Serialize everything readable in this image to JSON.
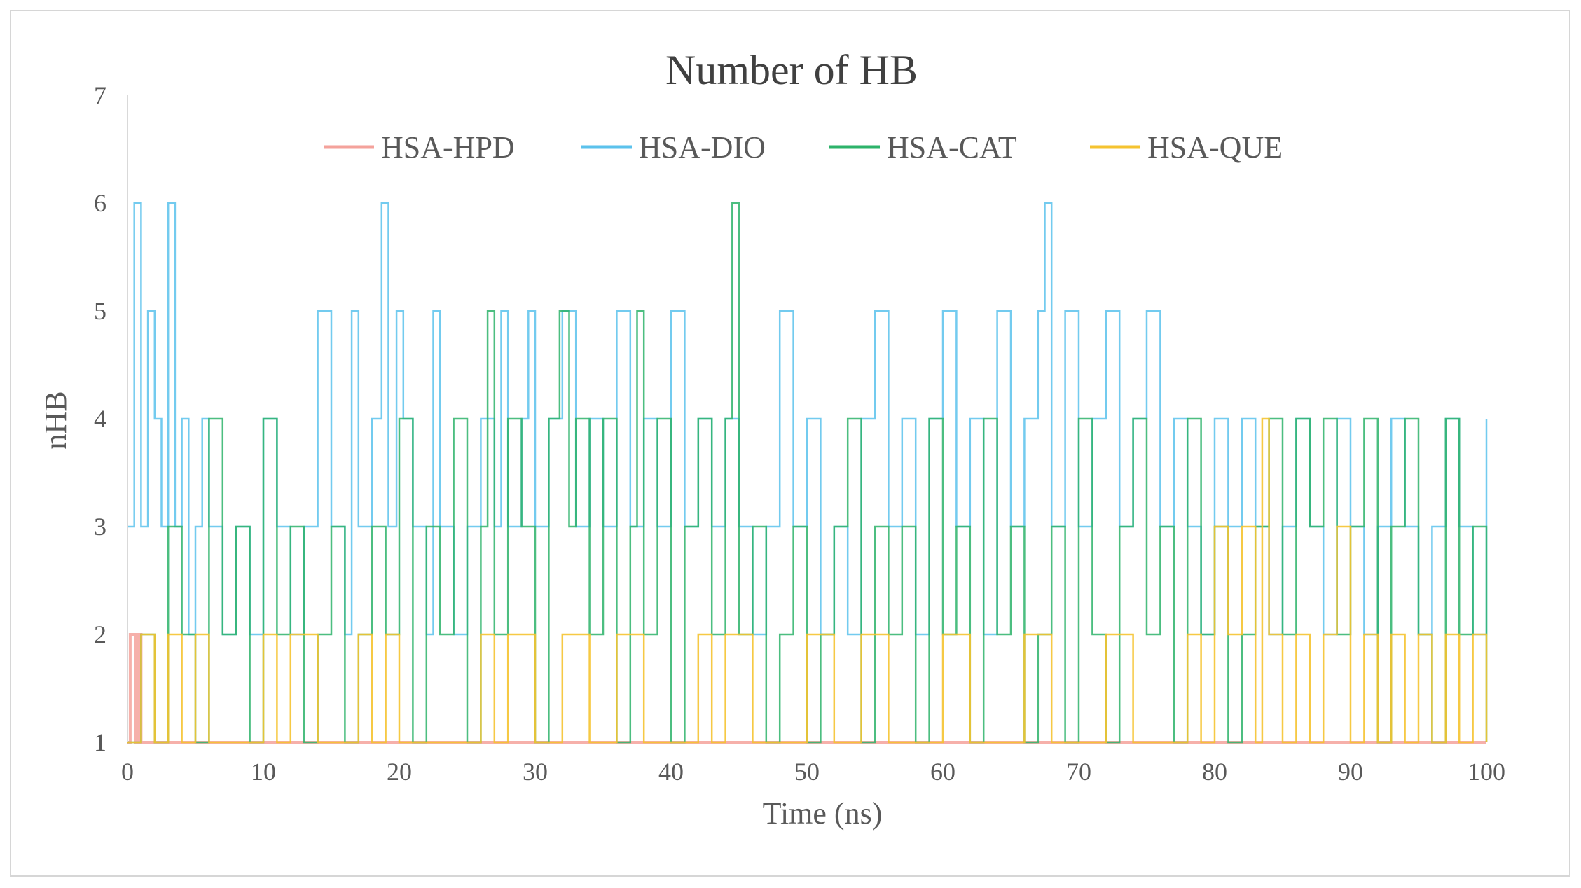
{
  "chart_data": {
    "type": "line",
    "title": "Number of HB",
    "xlabel": "Time (ns)",
    "ylabel": "nHB",
    "xlim": [
      0,
      100
    ],
    "ylim": [
      1,
      7
    ],
    "x_ticks": [
      0,
      10,
      20,
      30,
      40,
      50,
      60,
      70,
      80,
      90,
      100
    ],
    "y_ticks": [
      1,
      2,
      3,
      4,
      5,
      6,
      7
    ],
    "grid": false,
    "legend_position": "top",
    "series": [
      {
        "name": "HSA-HPD",
        "color": "#f4a29b",
        "x": [
          0.0,
          0.2,
          0.4,
          0.6,
          0.8,
          1.0,
          100.0
        ],
        "values": [
          1,
          2,
          2,
          1,
          2,
          1,
          1
        ]
      },
      {
        "name": "HSA-DIO",
        "color": "#5bc2ec",
        "x": [
          0.0,
          0.5,
          1.0,
          1.5,
          2.0,
          2.5,
          3.0,
          3.5,
          4.0,
          4.5,
          5.0,
          5.5,
          6.0,
          7.0,
          8.0,
          9.0,
          10.0,
          11.0,
          12.0,
          13.0,
          14.0,
          15.0,
          16.0,
          16.5,
          17.0,
          18.0,
          18.7,
          19.2,
          19.8,
          20.3,
          21.0,
          22.0,
          22.5,
          23.0,
          24.0,
          25.0,
          26.0,
          27.0,
          27.5,
          28.0,
          29.0,
          29.5,
          30.0,
          31.0,
          32.0,
          33.0,
          34.0,
          35.0,
          36.0,
          37.0,
          38.0,
          39.0,
          40.0,
          41.0,
          42.0,
          43.0,
          44.0,
          45.0,
          46.0,
          47.0,
          48.0,
          49.0,
          50.0,
          51.0,
          52.0,
          53.0,
          54.0,
          55.0,
          56.0,
          57.0,
          58.0,
          59.0,
          60.0,
          61.0,
          62.0,
          63.0,
          64.0,
          65.0,
          66.0,
          67.0,
          67.5,
          68.0,
          69.0,
          70.0,
          71.0,
          72.0,
          73.0,
          74.0,
          75.0,
          76.0,
          77.0,
          78.0,
          79.0,
          80.0,
          81.0,
          82.0,
          83.0,
          84.0,
          85.0,
          86.0,
          87.0,
          88.0,
          89.0,
          90.0,
          91.0,
          92.0,
          93.0,
          94.0,
          95.0,
          96.0,
          97.0,
          98.0,
          99.0,
          100.0
        ],
        "values": [
          3,
          6,
          3,
          5,
          4,
          3,
          6,
          3,
          4,
          2,
          3,
          4,
          3,
          2,
          3,
          2,
          4,
          3,
          2,
          3,
          5,
          3,
          2,
          5,
          3,
          4,
          6,
          3,
          5,
          4,
          3,
          2,
          5,
          3,
          2,
          3,
          4,
          3,
          5,
          3,
          4,
          5,
          3,
          4,
          5,
          3,
          4,
          3,
          5,
          3,
          4,
          3,
          5,
          3,
          4,
          3,
          4,
          3,
          2,
          3,
          5,
          3,
          4,
          2,
          3,
          2,
          4,
          5,
          3,
          4,
          2,
          4,
          5,
          3,
          4,
          2,
          5,
          3,
          4,
          5,
          6,
          3,
          5,
          3,
          4,
          5,
          3,
          4,
          5,
          3,
          4,
          3,
          2,
          4,
          3,
          4,
          3,
          2,
          3,
          4,
          3,
          2,
          4,
          3,
          2,
          3,
          4,
          3,
          2,
          3,
          4,
          3,
          2,
          4
        ]
      },
      {
        "name": "HSA-CAT",
        "color": "#2db36a",
        "x": [
          0.0,
          1.0,
          2.0,
          3.0,
          4.0,
          5.0,
          6.0,
          7.0,
          8.0,
          9.0,
          10.0,
          11.0,
          12.0,
          13.0,
          14.0,
          15.0,
          16.0,
          17.0,
          18.0,
          19.0,
          20.0,
          21.0,
          22.0,
          23.0,
          24.0,
          25.0,
          26.0,
          26.5,
          27.0,
          28.0,
          29.0,
          30.0,
          31.0,
          31.8,
          32.5,
          33.0,
          34.0,
          35.0,
          36.0,
          37.0,
          37.5,
          38.0,
          39.0,
          40.0,
          41.0,
          42.0,
          43.0,
          44.0,
          44.5,
          45.0,
          46.0,
          47.0,
          48.0,
          49.0,
          50.0,
          51.0,
          52.0,
          53.0,
          54.0,
          55.0,
          56.0,
          57.0,
          58.0,
          59.0,
          60.0,
          61.0,
          62.0,
          63.0,
          64.0,
          65.0,
          66.0,
          67.0,
          68.0,
          69.0,
          70.0,
          71.0,
          72.0,
          73.0,
          74.0,
          75.0,
          76.0,
          77.0,
          78.0,
          79.0,
          80.0,
          81.0,
          82.0,
          83.0,
          84.0,
          85.0,
          86.0,
          87.0,
          88.0,
          89.0,
          90.0,
          91.0,
          92.0,
          93.0,
          94.0,
          95.0,
          96.0,
          97.0,
          98.0,
          99.0,
          100.0
        ],
        "values": [
          1,
          2,
          1,
          3,
          2,
          1,
          4,
          2,
          3,
          1,
          4,
          2,
          3,
          1,
          2,
          3,
          1,
          2,
          3,
          2,
          4,
          1,
          3,
          2,
          4,
          1,
          3,
          5,
          2,
          4,
          3,
          1,
          4,
          5,
          3,
          4,
          2,
          4,
          1,
          3,
          5,
          2,
          4,
          1,
          3,
          4,
          2,
          4,
          6,
          2,
          3,
          1,
          2,
          3,
          1,
          2,
          3,
          4,
          1,
          3,
          2,
          3,
          1,
          4,
          2,
          3,
          1,
          4,
          2,
          3,
          1,
          2,
          3,
          1,
          4,
          2,
          1,
          3,
          4,
          2,
          3,
          1,
          4,
          2,
          3,
          1,
          2,
          3,
          4,
          2,
          4,
          3,
          4,
          2,
          3,
          4,
          1,
          3,
          4,
          2,
          1,
          4,
          2,
          3,
          1
        ]
      },
      {
        "name": "HSA-QUE",
        "color": "#f5c330",
        "x": [
          0.0,
          1.0,
          2.0,
          3.0,
          4.0,
          5.0,
          6.0,
          8.0,
          10.0,
          11.0,
          12.0,
          14.0,
          16.0,
          17.0,
          18.0,
          19.0,
          20.0,
          22.0,
          24.0,
          26.0,
          27.0,
          28.0,
          30.0,
          32.0,
          34.0,
          36.0,
          38.0,
          40.0,
          42.0,
          43.0,
          44.0,
          46.0,
          48.0,
          50.0,
          52.0,
          54.0,
          56.0,
          58.0,
          60.0,
          62.0,
          64.0,
          66.0,
          68.0,
          70.0,
          72.0,
          74.0,
          76.0,
          78.0,
          79.0,
          80.0,
          81.0,
          82.0,
          83.0,
          83.5,
          84.0,
          85.0,
          86.0,
          87.0,
          88.0,
          89.0,
          90.0,
          91.0,
          92.0,
          93.0,
          94.0,
          95.0,
          96.0,
          97.0,
          98.0,
          99.0,
          100.0
        ],
        "values": [
          1,
          2,
          1,
          2,
          1,
          2,
          1,
          1,
          2,
          1,
          2,
          1,
          1,
          2,
          1,
          2,
          1,
          1,
          1,
          2,
          1,
          2,
          1,
          2,
          1,
          2,
          1,
          1,
          2,
          1,
          2,
          1,
          1,
          2,
          1,
          2,
          1,
          1,
          2,
          1,
          1,
          2,
          1,
          1,
          2,
          1,
          1,
          2,
          1,
          3,
          2,
          3,
          1,
          4,
          2,
          1,
          2,
          1,
          2,
          3,
          1,
          2,
          1,
          2,
          1,
          2,
          1,
          2,
          1,
          2,
          1
        ]
      }
    ]
  }
}
